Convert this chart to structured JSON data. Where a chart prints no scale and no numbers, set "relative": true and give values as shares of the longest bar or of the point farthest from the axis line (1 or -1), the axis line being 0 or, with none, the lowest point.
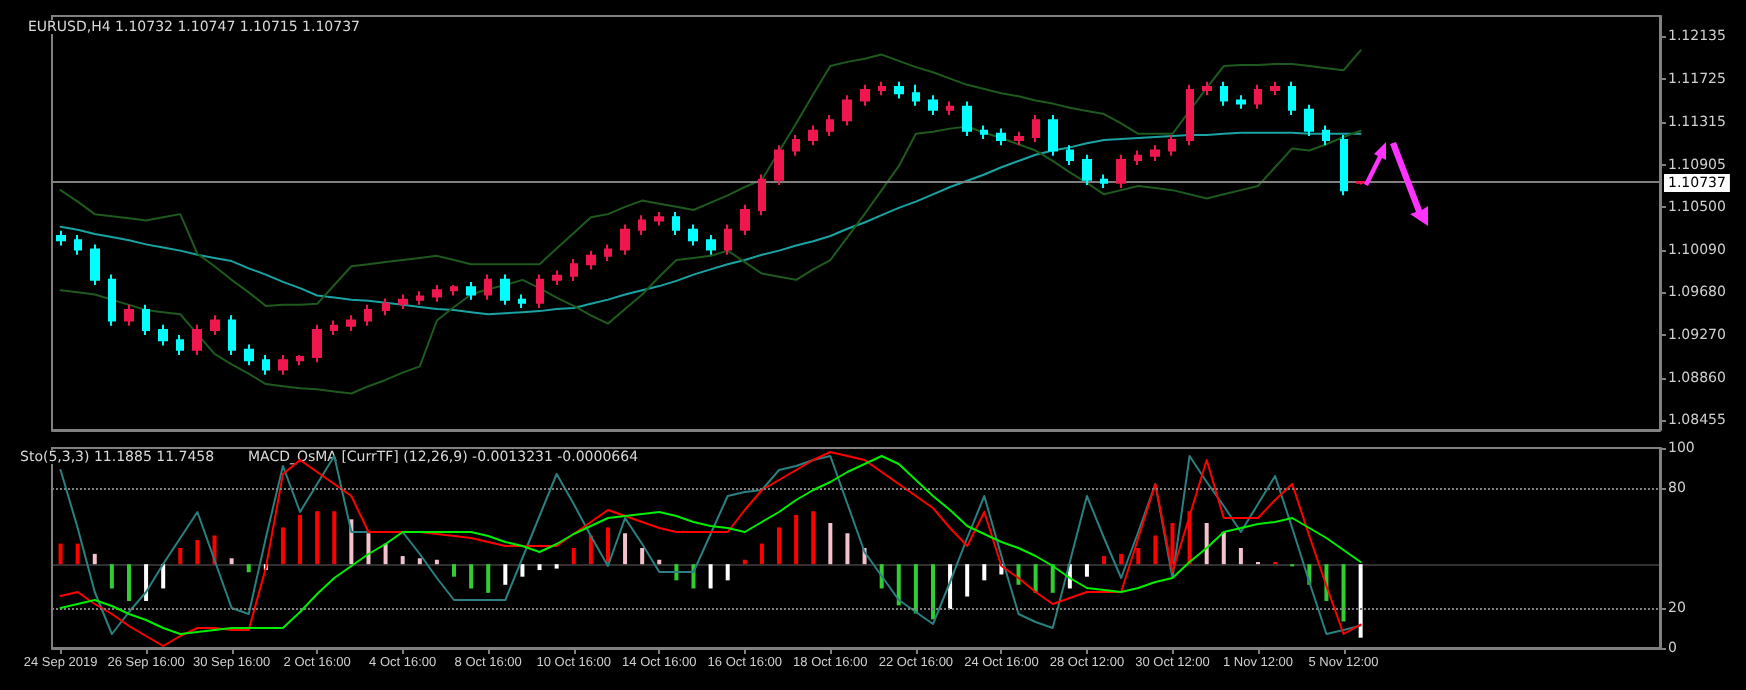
{
  "chart_data": [
    {
      "type": "candlestick",
      "title": "EURUSD,H4 1.10732 1.10747 1.10715 1.10737",
      "categories": [
        null,
        null,
        null,
        null,
        null,
        null,
        null,
        null,
        null,
        null,
        null,
        null,
        null,
        null,
        null,
        null,
        null,
        null,
        null,
        null,
        null,
        null,
        null,
        null,
        null,
        null,
        null,
        null,
        null,
        null,
        null,
        null,
        null,
        null,
        null,
        null,
        null,
        null,
        null,
        null,
        null,
        null,
        null,
        null,
        null,
        null,
        null,
        null,
        null,
        null,
        null,
        null,
        null,
        null,
        null,
        null,
        null,
        null,
        null,
        null,
        null,
        null,
        null,
        null,
        null,
        null,
        null,
        null,
        null,
        null,
        null,
        null,
        null,
        null,
        null,
        null,
        null
      ],
      "ohlc": [
        [
          1.1022,
          1.1027,
          1.1013,
          1.1018
        ],
        [
          1.1018,
          1.1023,
          1.1004,
          1.1009
        ],
        [
          1.1009,
          1.1014,
          1.0975,
          1.098
        ],
        [
          1.098,
          1.0985,
          1.0936,
          1.0941
        ],
        [
          1.0941,
          1.0956,
          1.0936,
          1.0951
        ],
        [
          1.0951,
          1.0956,
          1.0927,
          1.0932
        ],
        [
          1.0932,
          1.0937,
          1.0917,
          1.0922
        ],
        [
          1.0922,
          1.0927,
          1.0908,
          1.0913
        ],
        [
          1.0913,
          1.0937,
          1.0908,
          1.0932
        ],
        [
          1.0932,
          1.0946,
          1.0927,
          1.0941
        ],
        [
          1.0941,
          1.0946,
          1.0908,
          1.0913
        ],
        [
          1.0913,
          1.0918,
          1.0898,
          1.0903
        ],
        [
          1.0903,
          1.0908,
          1.0889,
          1.0894
        ],
        [
          1.0894,
          1.0908,
          1.0889,
          1.0903
        ],
        [
          1.0903,
          1.0908,
          1.0898,
          1.0906
        ],
        [
          1.0906,
          1.0937,
          1.0901,
          1.0932
        ],
        [
          1.0932,
          1.0941,
          1.0927,
          1.0936
        ],
        [
          1.0936,
          1.0946,
          1.0931,
          1.0941
        ],
        [
          1.0941,
          1.0956,
          1.0936,
          1.0951
        ],
        [
          1.0951,
          1.0962,
          1.0946,
          1.0957
        ],
        [
          1.0957,
          1.0966,
          1.0952,
          1.0961
        ],
        [
          1.0961,
          1.0969,
          1.0956,
          1.0964
        ],
        [
          1.0964,
          1.0975,
          1.0959,
          1.097
        ],
        [
          1.097,
          1.0975,
          1.0965,
          1.0973
        ],
        [
          1.0973,
          1.0978,
          1.0961,
          1.0966
        ],
        [
          1.0966,
          1.0985,
          1.0961,
          1.098
        ],
        [
          1.098,
          1.0985,
          1.0956,
          1.0961
        ],
        [
          1.0961,
          1.0966,
          1.0953,
          1.0958
        ],
        [
          1.0958,
          1.0985,
          1.0953,
          1.098
        ],
        [
          1.098,
          1.0989,
          1.0975,
          1.0984
        ],
        [
          1.0984,
          1.1,
          1.0979,
          1.0995
        ],
        [
          1.0995,
          1.1008,
          1.099,
          1.1003
        ],
        [
          1.1003,
          1.1014,
          1.0998,
          1.1009
        ],
        [
          1.1009,
          1.1033,
          1.1004,
          1.1028
        ],
        [
          1.1028,
          1.1042,
          1.1023,
          1.1037
        ],
        [
          1.1037,
          1.1045,
          1.1032,
          1.104
        ],
        [
          1.104,
          1.1045,
          1.1023,
          1.1028
        ],
        [
          1.1028,
          1.1033,
          1.1013,
          1.1018
        ],
        [
          1.1018,
          1.1023,
          1.1004,
          1.1009
        ],
        [
          1.1009,
          1.1033,
          1.1004,
          1.1028
        ],
        [
          1.1028,
          1.1052,
          1.1023,
          1.1047
        ],
        [
          1.1047,
          1.1081,
          1.1042,
          1.1076
        ],
        [
          1.1076,
          1.1109,
          1.1071,
          1.1104
        ],
        [
          1.1104,
          1.1119,
          1.1099,
          1.1114
        ],
        [
          1.1114,
          1.1128,
          1.1109,
          1.1123
        ],
        [
          1.1123,
          1.1138,
          1.1118,
          1.1133
        ],
        [
          1.1133,
          1.1157,
          1.1128,
          1.1152
        ],
        [
          1.1152,
          1.1167,
          1.1147,
          1.1162
        ],
        [
          1.1162,
          1.117,
          1.1157,
          1.1165
        ],
        [
          1.1165,
          1.117,
          1.1154,
          1.1159
        ],
        [
          1.1159,
          1.1167,
          1.1147,
          1.1152
        ],
        [
          1.1152,
          1.1157,
          1.1138,
          1.1143
        ],
        [
          1.1143,
          1.1151,
          1.1138,
          1.1146
        ],
        [
          1.1146,
          1.1151,
          1.1118,
          1.1123
        ],
        [
          1.1123,
          1.1128,
          1.1115,
          1.112
        ],
        [
          1.112,
          1.1125,
          1.1109,
          1.1114
        ],
        [
          1.1114,
          1.1122,
          1.1109,
          1.1117
        ],
        [
          1.1117,
          1.1138,
          1.1112,
          1.1133
        ],
        [
          1.1133,
          1.1138,
          1.1099,
          1.1104
        ],
        [
          1.1104,
          1.1109,
          1.109,
          1.1095
        ],
        [
          1.1095,
          1.11,
          1.1071,
          1.1076
        ],
        [
          1.1076,
          1.1081,
          1.1068,
          1.1073
        ],
        [
          1.1073,
          1.11,
          1.1068,
          1.1095
        ],
        [
          1.1095,
          1.1104,
          1.109,
          1.1099
        ],
        [
          1.1099,
          1.1109,
          1.1094,
          1.1104
        ],
        [
          1.1104,
          1.1119,
          1.1099,
          1.1114
        ],
        [
          1.1114,
          1.1167,
          1.1109,
          1.1162
        ],
        [
          1.1162,
          1.117,
          1.1157,
          1.1165
        ],
        [
          1.1165,
          1.117,
          1.1147,
          1.1152
        ],
        [
          1.1152,
          1.1157,
          1.1144,
          1.1149
        ],
        [
          1.1149,
          1.1167,
          1.1144,
          1.1162
        ],
        [
          1.1162,
          1.117,
          1.1157,
          1.1165
        ],
        [
          1.1165,
          1.117,
          1.1138,
          1.1143
        ],
        [
          1.1143,
          1.1148,
          1.1118,
          1.1123
        ],
        [
          1.1123,
          1.1128,
          1.1109,
          1.1114
        ],
        [
          1.1114,
          1.1119,
          1.1061,
          1.1066
        ],
        [
          1.10732,
          1.10747,
          1.10715,
          1.10737
        ]
      ],
      "colors": [
        "#00ffff",
        "#00ffff",
        "#00ffff",
        "#00ffff",
        "#f0174f",
        "#00ffff",
        "#00ffff",
        "#00ffff",
        "#f0174f",
        "#f0174f",
        "#00ffff",
        "#00ffff",
        "#00ffff",
        "#f0174f",
        "#f0174f",
        "#f0174f",
        "#f0174f",
        "#f0174f",
        "#f0174f",
        "#f0174f",
        "#f0174f",
        "#f0174f",
        "#f0174f",
        "#f0174f",
        "#00ffff",
        "#f0174f",
        "#00ffff",
        "#00ffff",
        "#f0174f",
        "#f0174f",
        "#f0174f",
        "#f0174f",
        "#f0174f",
        "#f0174f",
        "#f0174f",
        "#f0174f",
        "#00ffff",
        "#00ffff",
        "#00ffff",
        "#f0174f",
        "#f0174f",
        "#f0174f",
        "#f0174f",
        "#f0174f",
        "#f0174f",
        "#f0174f",
        "#f0174f",
        "#f0174f",
        "#f0174f",
        "#00ffff",
        "#00ffff",
        "#00ffff",
        "#f0174f",
        "#00ffff",
        "#00ffff",
        "#00ffff",
        "#f0174f",
        "#f0174f",
        "#00ffff",
        "#00ffff",
        "#00ffff",
        "#00ffff",
        "#f0174f",
        "#f0174f",
        "#f0174f",
        "#f0174f",
        "#f0174f",
        "#f0174f",
        "#00ffff",
        "#00ffff",
        "#f0174f",
        "#f0174f",
        "#00ffff",
        "#00ffff",
        "#00ffff",
        "#00ffff",
        "#f0174f"
      ],
      "series": [
        {
          "type": "line",
          "color": "#1aa3a3",
          "values": [
            1.1031,
            1.1028,
            1.1024,
            1.1021,
            1.1018,
            1.1014,
            1.1011,
            1.1008,
            1.1004,
            1.1001,
            1.0998,
            1.0991,
            1.0985,
            1.0978,
            1.0972,
            1.0965,
            1.0963,
            1.0961,
            1.096,
            1.0958,
            1.0956,
            1.0954,
            1.0952,
            1.0951,
            1.0949,
            1.0947,
            1.0948,
            1.0949,
            1.095,
            1.0952,
            1.0953,
            1.0957,
            1.0961,
            1.0966,
            1.097,
            1.0974,
            1.0979,
            1.0985,
            1.099,
            1.0995,
            1.0999,
            1.1004,
            1.1008,
            1.1013,
            1.1017,
            1.1022,
            1.1029,
            1.1035,
            1.1042,
            1.1049,
            1.1055,
            1.1062,
            1.1069,
            1.1075,
            1.1081,
            1.1088,
            1.1094,
            1.11,
            1.1104,
            1.1107,
            1.1111,
            1.1114,
            1.1115,
            1.1116,
            1.1117,
            1.1118,
            1.1119,
            1.1119,
            1.112,
            1.1121,
            1.1121,
            1.1121,
            1.1121,
            1.112,
            1.112,
            1.112,
            1.112
          ]
        },
        {
          "type": "line",
          "color": "#1e5a1e",
          "values": [
            1.1066,
            1.1055,
            1.1043,
            1.1041,
            1.1039,
            1.1037,
            1.104,
            1.1043,
            1.1005,
            1.0993,
            1.098,
            1.0968,
            1.0955,
            1.0956,
            1.0956,
            1.0957,
            1.0975,
            1.0993,
            1.0995,
            1.0997,
            1.0999,
            1.1001,
            1.1003,
            1.0999,
            1.0995,
            1.0995,
            1.0995,
            1.0995,
            1.0995,
            1.101,
            1.1025,
            1.104,
            1.1043,
            1.105,
            1.1056,
            1.1053,
            1.105,
            1.1047,
            1.1054,
            1.1061,
            1.1069,
            1.1076,
            1.1103,
            1.113,
            1.1158,
            1.1185,
            1.1189,
            1.1192,
            1.1196,
            1.119,
            1.1184,
            1.1179,
            1.1173,
            1.1167,
            1.1163,
            1.1159,
            1.1156,
            1.1152,
            1.1149,
            1.1145,
            1.1142,
            1.1139,
            1.113,
            1.112,
            1.112,
            1.112,
            1.1142,
            1.1164,
            1.1185,
            1.1186,
            1.1186,
            1.1187,
            1.1187,
            1.1185,
            1.1183,
            1.1181,
            1.12
          ]
        },
        {
          "type": "line",
          "color": "#1e5a1e",
          "values": [
            1.097,
            1.0968,
            1.0966,
            1.0961,
            1.0956,
            1.0951,
            1.0949,
            1.0947,
            1.0928,
            1.0909,
            1.0899,
            1.089,
            1.088,
            1.0878,
            1.0876,
            1.0875,
            1.0873,
            1.0871,
            1.0878,
            1.0884,
            1.0891,
            1.0897,
            1.0941,
            1.0954,
            1.0966,
            1.0971,
            1.0975,
            1.098,
            1.0972,
            1.0963,
            1.0955,
            1.0946,
            1.0938,
            1.0952,
            1.0966,
            1.0983,
            1.0999,
            1.1001,
            1.1003,
            1.1008,
            1.0997,
            1.0986,
            1.0983,
            1.098,
            1.099,
            1.0999,
            1.1021,
            1.1043,
            1.1066,
            1.1089,
            1.112,
            1.1122,
            1.1125,
            1.1127,
            1.1121,
            1.1116,
            1.111,
            1.1104,
            1.1094,
            1.1083,
            1.1073,
            1.1062,
            1.1066,
            1.107,
            1.1068,
            1.1066,
            1.1062,
            1.1058,
            1.1062,
            1.1066,
            1.107,
            1.1088,
            1.1106,
            1.1104,
            1.111,
            1.1117,
            1.1123
          ]
        }
      ],
      "ylim": [
        1.0836,
        1.1233
      ],
      "yticks": [
        {
          "value": 1.08455,
          "label": "1.08455"
        },
        {
          "value": 1.0886,
          "label": "1.08860"
        },
        {
          "value": 1.0927,
          "label": "1.09270"
        },
        {
          "value": 1.0968,
          "label": "1.09680"
        },
        {
          "value": 1.1009,
          "label": "1.10090"
        },
        {
          "value": 1.105,
          "label": "1.10500"
        },
        {
          "value": 1.10905,
          "label": "1.10905"
        },
        {
          "value": 1.11315,
          "label": "1.11315"
        },
        {
          "value": 1.11725,
          "label": "1.11725"
        },
        {
          "value": 1.12135,
          "label": "1.12135"
        }
      ],
      "ref_lines": [
        {
          "axis": "y",
          "value": 1.10737,
          "label": "1.10737",
          "color": "#7f7f7f"
        }
      ],
      "tick_labels": "y",
      "marker": "none",
      "line_style": "solid"
    },
    {
      "type": "bar",
      "title": "MACD_OsMA [CurrTF] (12,26,9) -0.0013231 -0.0000664",
      "relative": true,
      "tick_labels": false,
      "categories": [
        null,
        null,
        null,
        null,
        null,
        null,
        null,
        null,
        null,
        null,
        null,
        null,
        null,
        null,
        null,
        null,
        null,
        null,
        null,
        null,
        null,
        null,
        null,
        null,
        null,
        null,
        null,
        null,
        null,
        null,
        null,
        null,
        null,
        null,
        null,
        null,
        null,
        null,
        null,
        null,
        null,
        null,
        null,
        null,
        null,
        null,
        null,
        null,
        null,
        null,
        null,
        null,
        null,
        null,
        null,
        null,
        null,
        null,
        null,
        null,
        null,
        null,
        null,
        null,
        null,
        null,
        null,
        null,
        null,
        null,
        null,
        null,
        null,
        null,
        null,
        null,
        null
      ],
      "values": [
        0.28,
        0.28,
        0.14,
        -0.33,
        -0.5,
        -0.5,
        -0.33,
        0.22,
        0.33,
        0.39,
        0.08,
        -0.11,
        -0.08,
        0.5,
        0.67,
        0.72,
        0.72,
        0.61,
        0.42,
        0.28,
        0.11,
        0.08,
        0.06,
        -0.17,
        -0.33,
        -0.39,
        -0.28,
        -0.17,
        -0.08,
        -0.06,
        0.22,
        0.39,
        0.5,
        0.42,
        0.22,
        0.06,
        -0.22,
        -0.33,
        -0.33,
        -0.22,
        0.06,
        0.28,
        0.5,
        0.67,
        0.72,
        0.56,
        0.42,
        0.22,
        -0.33,
        -0.56,
        -0.67,
        -0.75,
        -0.61,
        -0.44,
        -0.22,
        -0.14,
        -0.28,
        -0.39,
        -0.39,
        -0.33,
        -0.17,
        0.11,
        0.14,
        0.22,
        0.39,
        0.56,
        0.72,
        0.56,
        0.44,
        0.22,
        0.03,
        0.03,
        -0.03,
        -0.28,
        -0.5,
        -0.78,
        -1
      ],
      "colors": [
        "#ff0000",
        "#ff0000",
        "#f4c2cc",
        "#32cd32",
        "#32cd32",
        "#ffffff",
        "#ffffff",
        "#ff0000",
        "#ff0000",
        "#ff0000",
        "#f4c2cc",
        "#32cd32",
        "#ffffff",
        "#ff0000",
        "#ff0000",
        "#ff0000",
        "#ff0000",
        "#f4c2cc",
        "#f4c2cc",
        "#f4c2cc",
        "#f4c2cc",
        "#f4c2cc",
        "#f4c2cc",
        "#32cd32",
        "#32cd32",
        "#32cd32",
        "#ffffff",
        "#ffffff",
        "#ffffff",
        "#ffffff",
        "#ff0000",
        "#ff0000",
        "#ff0000",
        "#f4c2cc",
        "#f4c2cc",
        "#f4c2cc",
        "#32cd32",
        "#32cd32",
        "#ffffff",
        "#ffffff",
        "#ff0000",
        "#ff0000",
        "#ff0000",
        "#ff0000",
        "#ff0000",
        "#f4c2cc",
        "#f4c2cc",
        "#f4c2cc",
        "#32cd32",
        "#32cd32",
        "#32cd32",
        "#32cd32",
        "#ffffff",
        "#ffffff",
        "#ffffff",
        "#ffffff",
        "#32cd32",
        "#32cd32",
        "#32cd32",
        "#ffffff",
        "#ffffff",
        "#ff0000",
        "#ff0000",
        "#ff0000",
        "#ff0000",
        "#ff0000",
        "#ff0000",
        "#f4c2cc",
        "#f4c2cc",
        "#f4c2cc",
        "#f4c2cc",
        "#ff0000",
        "#32cd32",
        "#32cd32",
        "#32cd32",
        "#32cd32",
        "#ffffff"
      ]
    },
    {
      "type": "line",
      "title": "Sto(5,3,3) 11.1885 11.7458",
      "categories": [
        "24 Sep 2019",
        null,
        null,
        null,
        null,
        "26 Sep 16:00",
        null,
        null,
        null,
        null,
        "30 Sep 16:00",
        null,
        null,
        null,
        null,
        "2 Oct 16:00",
        null,
        null,
        null,
        null,
        "4 Oct 16:00",
        null,
        null,
        null,
        null,
        "8 Oct 16:00",
        null,
        null,
        null,
        null,
        "10 Oct 16:00",
        null,
        null,
        null,
        null,
        "14 Oct 16:00",
        null,
        null,
        null,
        null,
        "16 Oct 16:00",
        null,
        null,
        null,
        null,
        "18 Oct 16:00",
        null,
        null,
        null,
        null,
        "22 Oct 16:00",
        null,
        null,
        null,
        null,
        "24 Oct 16:00",
        null,
        null,
        null,
        null,
        "28 Oct 12:00",
        null,
        null,
        null,
        null,
        "30 Oct 12:00",
        null,
        null,
        null,
        null,
        "1 Nov 12:00",
        null,
        null,
        null,
        null,
        "5 Nov 12:00",
        null
      ],
      "series": [
        {
          "color": "#2a8080",
          "values": [
            89,
            60,
            28,
            7,
            18,
            28,
            42,
            55,
            68,
            44,
            20,
            17,
            55,
            91,
            68,
            82,
            96,
            58,
            58,
            58,
            58,
            47,
            35,
            24,
            24,
            24,
            24,
            45,
            66,
            87,
            72,
            56,
            41,
            65,
            52,
            38,
            38,
            38,
            57,
            76,
            78,
            79,
            89,
            91,
            94,
            96,
            72,
            48,
            36,
            24,
            18,
            12,
            33,
            55,
            76,
            46,
            17,
            13,
            10,
            43,
            76,
            55,
            35,
            58,
            82,
            35,
            96,
            83,
            71,
            58,
            72,
            86,
            60,
            33,
            7,
            9,
            11.1885
          ]
        },
        {
          "color": "#ff0000",
          "values": [
            26,
            28,
            22,
            17,
            11,
            6,
            1,
            6,
            10,
            10,
            9,
            9,
            40,
            87,
            94,
            88,
            82,
            76,
            58,
            58,
            58,
            58,
            57,
            56,
            55,
            53,
            51,
            51,
            51,
            51,
            57,
            63,
            69,
            66,
            63,
            60,
            58,
            58,
            58,
            58,
            69,
            79,
            84,
            89,
            94,
            98,
            96,
            94,
            88,
            82,
            76,
            70,
            60,
            51,
            68,
            41,
            35,
            28,
            22,
            25,
            28,
            28,
            28,
            55,
            82,
            38,
            66,
            94,
            65,
            65,
            65,
            74,
            82,
            56,
            31,
            7,
            11.7458
          ]
        },
        {
          "color": "#00ee00",
          "values": [
            20,
            22,
            24,
            21,
            17,
            14,
            10,
            7,
            8,
            9,
            10,
            10,
            10,
            10,
            18,
            27,
            35,
            41,
            47,
            52,
            58,
            58,
            58,
            58,
            58,
            56,
            53,
            51,
            48,
            52,
            57,
            61,
            65,
            66,
            67,
            68,
            66,
            63,
            61,
            60,
            58,
            63,
            68,
            74,
            79,
            83,
            88,
            92,
            96,
            92,
            84,
            76,
            69,
            61,
            57,
            53,
            50,
            46,
            41,
            35,
            30,
            29,
            28,
            30,
            33,
            35,
            43,
            50,
            58,
            60,
            62,
            63,
            65,
            60,
            55,
            49,
            43
          ]
        }
      ],
      "ylim": [
        0,
        100
      ],
      "yticks": [
        0,
        20,
        80,
        100
      ],
      "ref_lines": [
        {
          "axis": "y",
          "value": 20,
          "color": "#7f7f7f",
          "line_style": "dotted"
        },
        {
          "axis": "y",
          "value": 80,
          "color": "#7f7f7f",
          "line_style": "dotted"
        }
      ],
      "marker": "none",
      "line_style": "solid"
    }
  ]
}
